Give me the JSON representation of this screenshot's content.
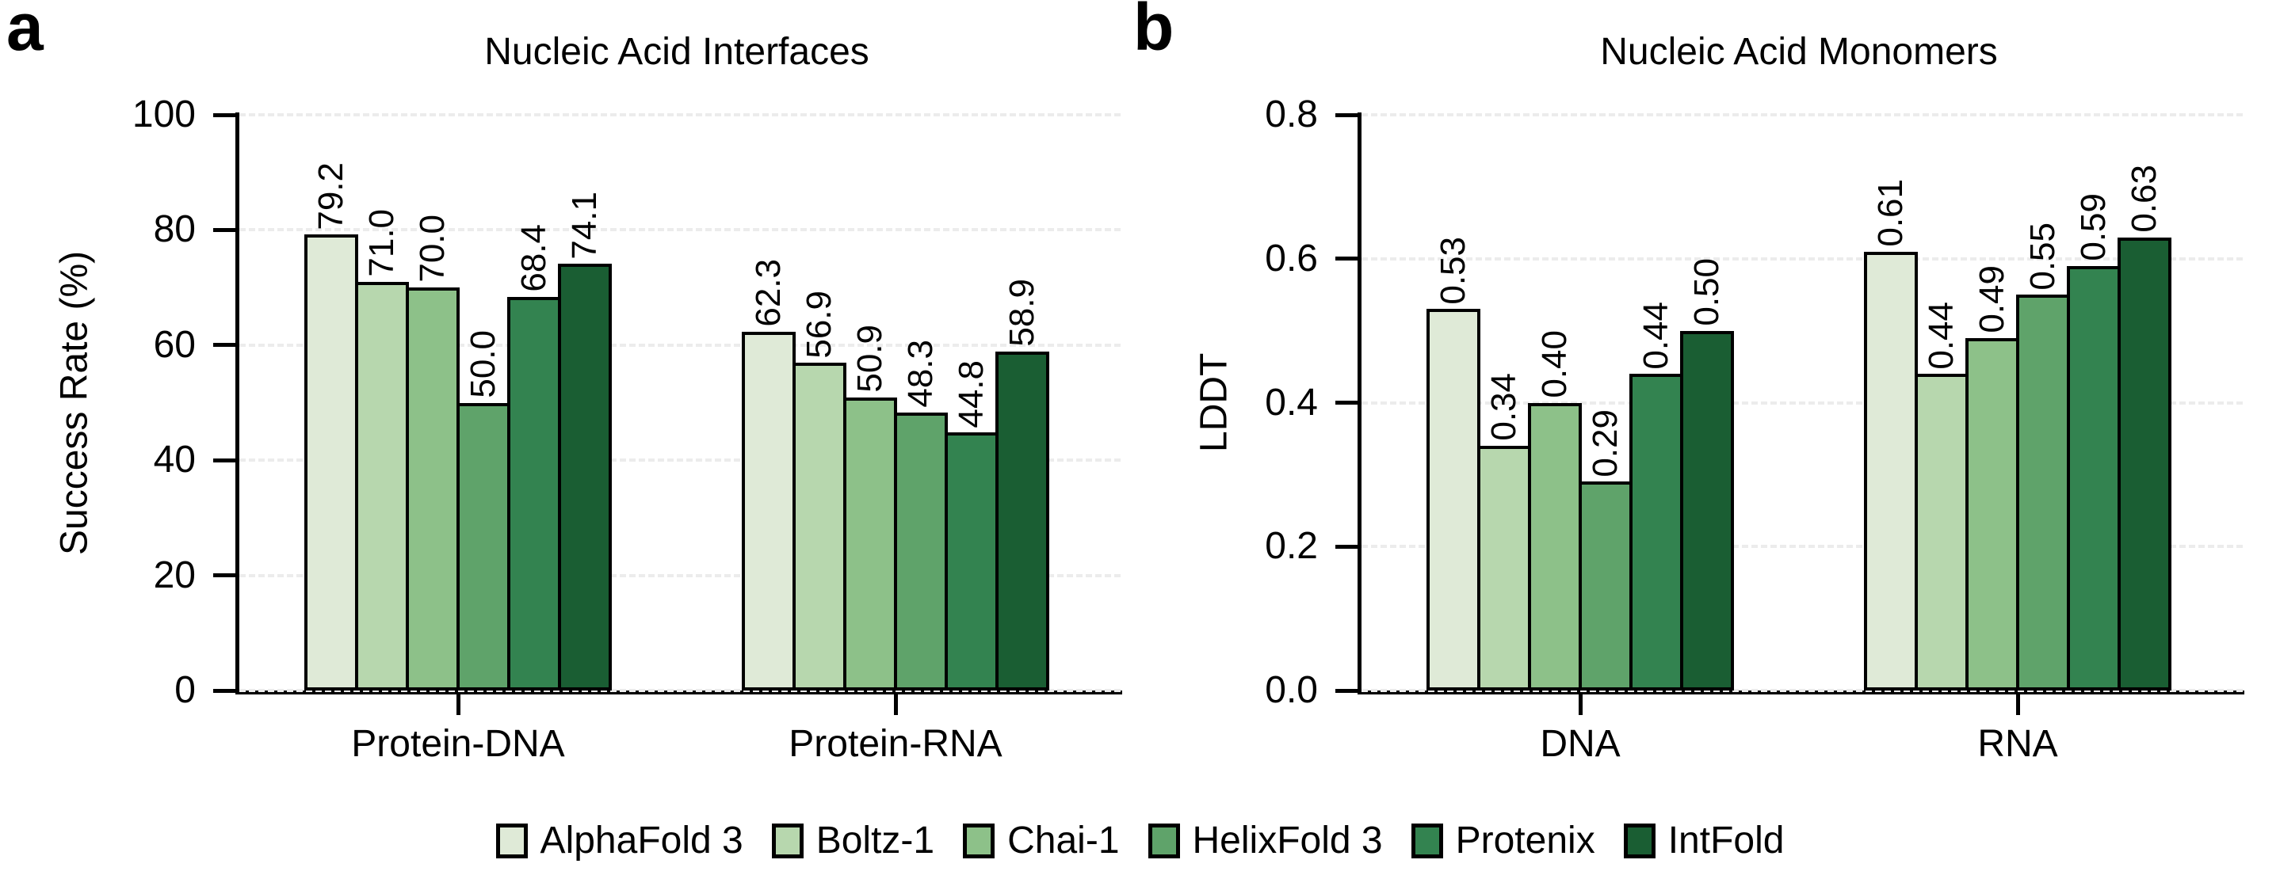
{
  "chart_data": [
    {
      "panel_letter": "a",
      "type": "bar",
      "title": "Nucleic Acid Interfaces",
      "xlabel": "",
      "ylabel": "Success Rate (%)",
      "ylim": [
        0,
        100
      ],
      "yticks": [
        {
          "value": 0,
          "label": "0"
        },
        {
          "value": 20,
          "label": "20"
        },
        {
          "value": 40,
          "label": "40"
        },
        {
          "value": 60,
          "label": "60"
        },
        {
          "value": 80,
          "label": "80"
        },
        {
          "value": 100,
          "label": "100"
        }
      ],
      "grid": "dashed-horizontal",
      "categories": [
        "Protein-DNA",
        "Protein-RNA"
      ],
      "series": [
        {
          "name": "AlphaFold 3",
          "color": "#dfead7",
          "values": [
            79.2,
            62.3
          ],
          "labels": [
            "79.2",
            "62.3"
          ]
        },
        {
          "name": "Boltz-1",
          "color": "#b7d7ae",
          "values": [
            71.0,
            56.9
          ],
          "labels": [
            "71.0",
            "56.9"
          ]
        },
        {
          "name": "Chai-1",
          "color": "#8dc189",
          "values": [
            70.0,
            50.9
          ],
          "labels": [
            "70.0",
            "50.9"
          ]
        },
        {
          "name": "HelixFold 3",
          "color": "#5fa36a",
          "values": [
            50.0,
            48.3
          ],
          "labels": [
            "50.0",
            "48.3"
          ]
        },
        {
          "name": "Protenix",
          "color": "#338350",
          "values": [
            68.4,
            44.8
          ],
          "labels": [
            "68.4",
            "44.8"
          ]
        },
        {
          "name": "IntFold",
          "color": "#1a5e33",
          "values": [
            74.1,
            58.9
          ],
          "labels": [
            "74.1",
            "58.9"
          ]
        }
      ]
    },
    {
      "panel_letter": "b",
      "type": "bar",
      "title": "Nucleic Acid Monomers",
      "xlabel": "",
      "ylabel": "LDDT",
      "ylim": [
        0,
        0.8
      ],
      "yticks": [
        {
          "value": 0.0,
          "label": "0.0"
        },
        {
          "value": 0.2,
          "label": "0.2"
        },
        {
          "value": 0.4,
          "label": "0.4"
        },
        {
          "value": 0.6,
          "label": "0.6"
        },
        {
          "value": 0.8,
          "label": "0.8"
        }
      ],
      "grid": "dashed-horizontal",
      "categories": [
        "DNA",
        "RNA"
      ],
      "series": [
        {
          "name": "AlphaFold 3",
          "color": "#dfead7",
          "values": [
            0.53,
            0.61
          ],
          "labels": [
            "0.53",
            "0.61"
          ]
        },
        {
          "name": "Boltz-1",
          "color": "#b7d7ae",
          "values": [
            0.34,
            0.44
          ],
          "labels": [
            "0.34",
            "0.44"
          ]
        },
        {
          "name": "Chai-1",
          "color": "#8dc189",
          "values": [
            0.4,
            0.49
          ],
          "labels": [
            "0.40",
            "0.49"
          ]
        },
        {
          "name": "HelixFold 3",
          "color": "#5fa36a",
          "values": [
            0.29,
            0.55
          ],
          "labels": [
            "0.29",
            "0.55"
          ]
        },
        {
          "name": "Protenix",
          "color": "#338350",
          "values": [
            0.44,
            0.59
          ],
          "labels": [
            "0.44",
            "0.59"
          ]
        },
        {
          "name": "IntFold",
          "color": "#1a5e33",
          "values": [
            0.5,
            0.63
          ],
          "labels": [
            "0.50",
            "0.63"
          ]
        }
      ]
    }
  ],
  "legend": {
    "position": "bottom-center",
    "items": [
      {
        "label": "AlphaFold 3",
        "color": "#dfead7"
      },
      {
        "label": "Boltz-1",
        "color": "#b7d7ae"
      },
      {
        "label": "Chai-1",
        "color": "#8dc189"
      },
      {
        "label": "HelixFold 3",
        "color": "#5fa36a"
      },
      {
        "label": "Protenix",
        "color": "#338350"
      },
      {
        "label": "IntFold",
        "color": "#1a5e33"
      }
    ]
  }
}
